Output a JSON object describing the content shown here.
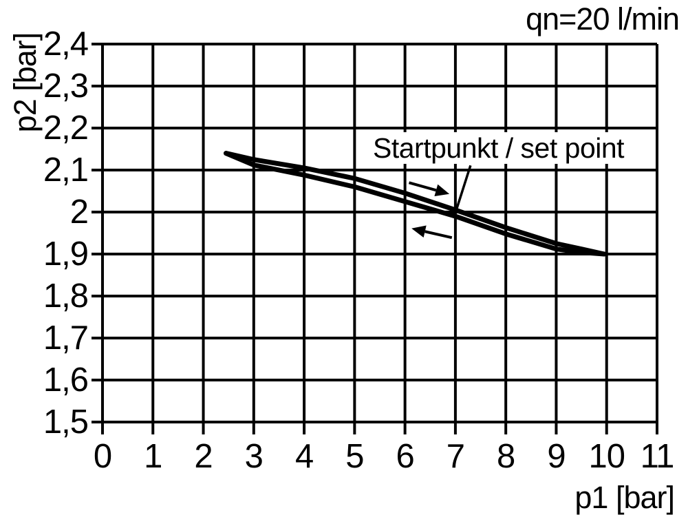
{
  "page": {
    "background": "#ffffff",
    "foreground": "#000000"
  },
  "chart_data": {
    "type": "line",
    "flow_label": "qn=20 l/min",
    "xlabel": "p1 [bar]",
    "ylabel": "p2 [bar]",
    "xlim": [
      0,
      11
    ],
    "ylim": [
      1.5,
      2.4
    ],
    "grid": true,
    "line_color": "#000000",
    "x_ticks": [
      0,
      1,
      2,
      3,
      4,
      5,
      6,
      7,
      8,
      9,
      10,
      11
    ],
    "x_tick_labels": [
      "0",
      "1",
      "2",
      "3",
      "4",
      "5",
      "6",
      "7",
      "8",
      "9",
      "10",
      "11"
    ],
    "y_ticks": [
      2.4,
      2.3,
      2.2,
      2.1,
      2.0,
      1.9,
      1.8,
      1.7,
      1.6,
      1.5
    ],
    "y_tick_labels": [
      "2,4",
      "2,3",
      "2,2",
      "2,1",
      "2",
      "1,9",
      "1,8",
      "1,7",
      "1,6",
      "1,5"
    ],
    "series": [
      {
        "name": "hysteresis-upper-branch",
        "points": [
          [
            2.45,
            2.14
          ],
          [
            3,
            2.125
          ],
          [
            4,
            2.105
          ],
          [
            5,
            2.08
          ],
          [
            6,
            2.045
          ],
          [
            7,
            2.005
          ],
          [
            8,
            1.963
          ],
          [
            9,
            1.925
          ],
          [
            9.5,
            1.912
          ],
          [
            9.95,
            1.9
          ]
        ]
      },
      {
        "name": "hysteresis-lower-branch",
        "points": [
          [
            2.45,
            2.14
          ],
          [
            3,
            2.112
          ],
          [
            4,
            2.088
          ],
          [
            5,
            2.06
          ],
          [
            6,
            2.025
          ],
          [
            7,
            1.99
          ],
          [
            8,
            1.948
          ],
          [
            9,
            1.912
          ],
          [
            9.5,
            1.904
          ],
          [
            9.95,
            1.9
          ]
        ]
      }
    ],
    "annotation": {
      "text": "Startpunkt / set point",
      "set_point": [
        7.0,
        2.0
      ],
      "leader_from": [
        7.3,
        2.111
      ],
      "leader_to": [
        7.01,
        2.002
      ]
    },
    "arrows": [
      {
        "name": "increasing-p1-direction",
        "from": [
          6.08,
          2.07
        ],
        "to": [
          6.88,
          2.043
        ]
      },
      {
        "name": "decreasing-p1-direction",
        "from": [
          6.93,
          1.939
        ],
        "to": [
          6.13,
          1.961
        ]
      }
    ]
  }
}
